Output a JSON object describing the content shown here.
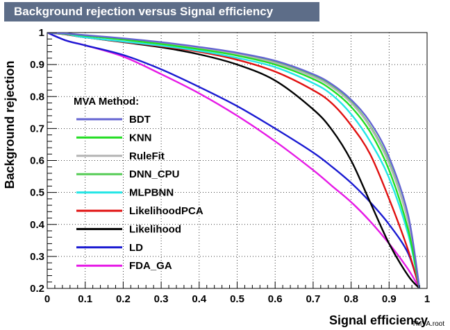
{
  "chart_data": {
    "type": "line",
    "title": "Background rejection versus Signal efficiency",
    "xlabel": "Signal efficiency",
    "ylabel": "Background rejection",
    "xlim": [
      0,
      1
    ],
    "ylim": [
      0.2,
      1
    ],
    "x_ticks": [
      "0",
      "0.1",
      "0.2",
      "0.3",
      "0.4",
      "0.5",
      "0.6",
      "0.7",
      "0.8",
      "0.9",
      "1"
    ],
    "y_ticks": [
      "0.2",
      "0.3",
      "0.4",
      "0.5",
      "0.6",
      "0.7",
      "0.8",
      "0.9",
      "1"
    ],
    "grid": true,
    "legend": {
      "title": "MVA Method:",
      "placement": "left, mid-height"
    },
    "footer": "TMVA.root",
    "x": [
      0,
      0.05,
      0.1,
      0.2,
      0.3,
      0.4,
      0.5,
      0.6,
      0.7,
      0.75,
      0.8,
      0.85,
      0.9,
      0.95,
      0.98
    ],
    "series": [
      {
        "name": "BDT",
        "color": "#6464d2",
        "values": [
          1.0,
          0.997,
          0.992,
          0.982,
          0.97,
          0.955,
          0.937,
          0.912,
          0.87,
          0.838,
          0.79,
          0.72,
          0.61,
          0.43,
          0.2
        ]
      },
      {
        "name": "KNN",
        "color": "#22dd22",
        "values": [
          1.0,
          0.996,
          0.99,
          0.978,
          0.964,
          0.948,
          0.928,
          0.9,
          0.855,
          0.82,
          0.768,
          0.69,
          0.57,
          0.385,
          0.2
        ]
      },
      {
        "name": "RuleFit",
        "color": "#b4b4b4",
        "values": [
          1.0,
          0.997,
          0.991,
          0.98,
          0.967,
          0.951,
          0.932,
          0.905,
          0.862,
          0.829,
          0.78,
          0.705,
          0.59,
          0.41,
          0.2
        ]
      },
      {
        "name": "DNN_CPU",
        "color": "#55cc55",
        "values": [
          1.0,
          0.997,
          0.991,
          0.98,
          0.967,
          0.952,
          0.934,
          0.908,
          0.866,
          0.832,
          0.783,
          0.708,
          0.595,
          0.41,
          0.2
        ]
      },
      {
        "name": "MLPBNN",
        "color": "#22e6e6",
        "values": [
          1.0,
          0.995,
          0.985,
          0.972,
          0.959,
          0.943,
          0.921,
          0.892,
          0.842,
          0.805,
          0.745,
          0.66,
          0.545,
          0.37,
          0.2
        ]
      },
      {
        "name": "LikelihoodPCA",
        "color": "#e01010",
        "values": [
          1.0,
          0.994,
          0.985,
          0.971,
          0.957,
          0.94,
          0.915,
          0.878,
          0.82,
          0.778,
          0.71,
          0.62,
          0.48,
          0.32,
          0.2
        ]
      },
      {
        "name": "Likelihood",
        "color": "#000000",
        "values": [
          1.0,
          0.994,
          0.985,
          0.97,
          0.954,
          0.932,
          0.9,
          0.85,
          0.76,
          0.695,
          0.6,
          0.47,
          0.34,
          0.24,
          0.2
        ]
      },
      {
        "name": "LD",
        "color": "#1a1ad2",
        "values": [
          1.0,
          0.975,
          0.96,
          0.93,
          0.885,
          0.83,
          0.77,
          0.7,
          0.625,
          0.58,
          0.53,
          0.47,
          0.4,
          0.31,
          0.2
        ]
      },
      {
        "name": "FDA_GA",
        "color": "#e61ae6",
        "values": [
          1.0,
          0.975,
          0.96,
          0.925,
          0.87,
          0.81,
          0.74,
          0.66,
          0.57,
          0.52,
          0.47,
          0.41,
          0.34,
          0.26,
          0.2
        ]
      }
    ]
  }
}
